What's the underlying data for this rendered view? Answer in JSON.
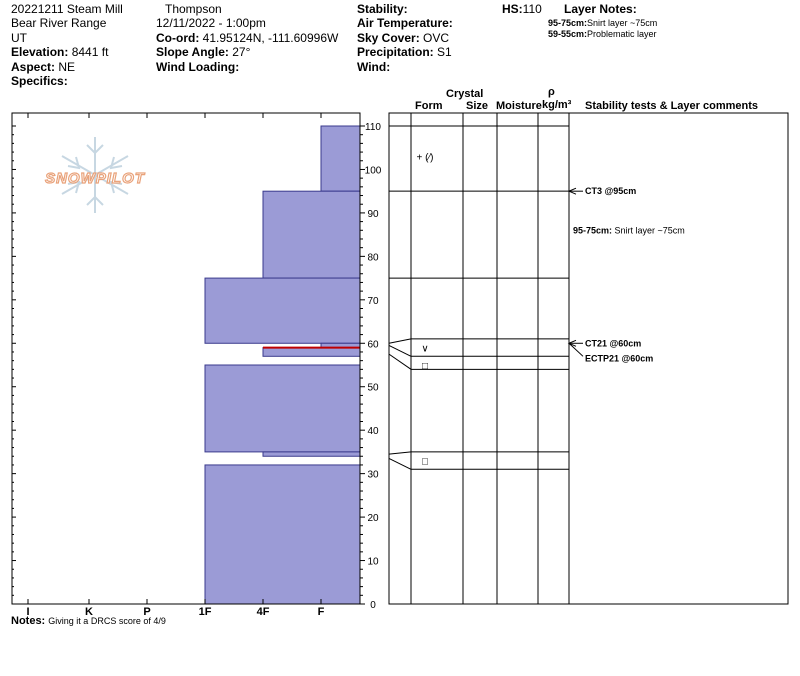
{
  "header": {
    "date_location": "20221211 Steam Mill",
    "observer": "Thompson",
    "range": "Bear River Range",
    "datetime": "12/11/2022 - 1:00pm",
    "state": "UT",
    "elevation_label": "Elevation:",
    "elevation_value": "8441 ft",
    "coord_label": "Co-ord:",
    "coord_value": "41.95124N, -111.60996W",
    "aspect_label": "Aspect:",
    "aspect_value": "NE",
    "slope_label": "Slope Angle:",
    "slope_value": "27°",
    "wind_loading_label": "Wind Loading:",
    "specifics_label": "Specifics:",
    "stability_label": "Stability:",
    "air_temp_label": "Air Temperature:",
    "sky_label": "Sky Cover:",
    "sky_value": "OVC",
    "precip_label": "Precipitation:",
    "precip_value": "S1",
    "wind_label": "Wind:",
    "hs_label": "HS:",
    "hs_value": "110",
    "layer_notes_label": "Layer Notes:",
    "layer_note_1_range": "95-75cm:",
    "layer_note_1_text": "Snirt layer ~75cm",
    "layer_note_2_range": "59-55cm:",
    "layer_note_2_text": "Problematic layer"
  },
  "columns": {
    "crystal": "Crystal",
    "form": "Form",
    "size": "Size",
    "moisture": "Moisture",
    "rho": "ρ",
    "density": "kg/m³",
    "stability": "Stability tests & Layer comments"
  },
  "logo": {
    "text": "SNOWPILOT"
  },
  "hardness_axis": [
    "I",
    "K",
    "P",
    "1F",
    "4F",
    "F"
  ],
  "depth_ticks": [
    "0",
    "10",
    "20",
    "30",
    "40",
    "50",
    "60",
    "70",
    "80",
    "90",
    "100",
    "110"
  ],
  "crystal_forms": [
    {
      "text": "+ (⁄)",
      "depth": 103
    },
    {
      "text": "∨",
      "depth": 59
    },
    {
      "text": "□",
      "depth": 55
    },
    {
      "text": "□",
      "depth": 33
    }
  ],
  "layer_boundaries": [
    95,
    75,
    61,
    57,
    54,
    35,
    31
  ],
  "layer_comments": [
    {
      "text": "CT3 @95cm",
      "bold": true
    },
    {
      "range": "95-75cm:",
      "text": "Snirt layer ~75cm"
    },
    {
      "text": "CT21 @60cm",
      "bold": true
    },
    {
      "text": "ECTP21 @60cm",
      "bold": true
    }
  ],
  "chart_data": {
    "type": "bar",
    "title": "",
    "xlabel": "Hardness",
    "ylabel": "Depth (cm)",
    "ylim": [
      0,
      110
    ],
    "hardness_scale": [
      "I",
      "K",
      "P",
      "1F",
      "4F",
      "F"
    ],
    "layers": [
      {
        "top": 110,
        "bottom": 95,
        "hardness": "F"
      },
      {
        "top": 95,
        "bottom": 75,
        "hardness": "4F"
      },
      {
        "top": 75,
        "bottom": 60,
        "hardness": "1F"
      },
      {
        "top": 60,
        "bottom": 59,
        "hardness": "F"
      },
      {
        "top": 59,
        "bottom": 57,
        "hardness": "4F"
      },
      {
        "top": 55,
        "bottom": 35,
        "hardness": "1F"
      },
      {
        "top": 35,
        "bottom": 34,
        "hardness": "4F"
      },
      {
        "top": 32,
        "bottom": 0,
        "hardness": "1F"
      }
    ],
    "problematic_layer_depth": 59
  },
  "notes": {
    "label": "Notes:",
    "text": "Giving it a DRCS score of 4/9"
  }
}
